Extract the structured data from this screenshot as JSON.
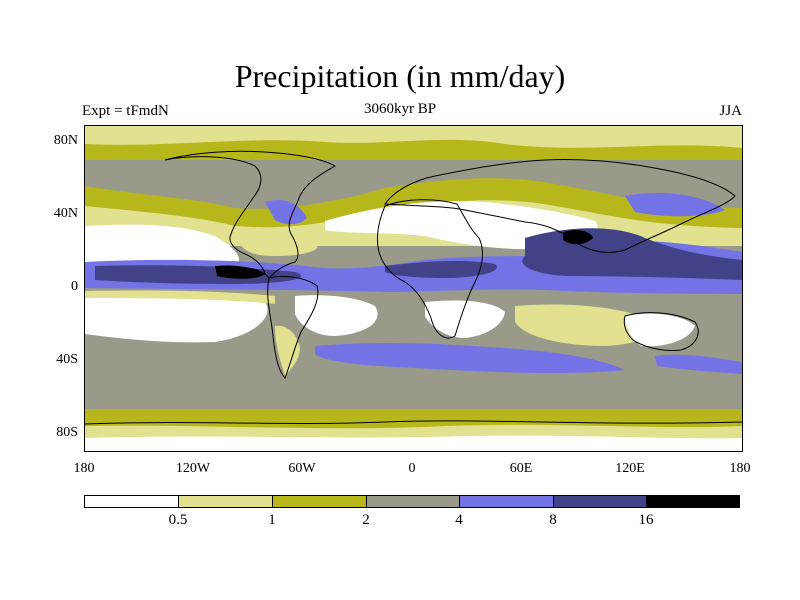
{
  "title": "Precipitation (in mm/day)",
  "experiment": "Expt = tFmdN",
  "period": "3060kyr BP",
  "season": "JJA",
  "lat_labels": [
    "80N",
    "40N",
    "0",
    "40S",
    "80S"
  ],
  "lon_labels": [
    "180",
    "120W",
    "60W",
    "0",
    "60E",
    "120E",
    "180"
  ],
  "colorbar": {
    "colors": [
      "#ffffff",
      "#e1e18f",
      "#b7b71b",
      "#9a9a8a",
      "#7373e6",
      "#424288",
      "#000000"
    ],
    "labels": [
      "0.5",
      "1",
      "2",
      "4",
      "8",
      "16"
    ]
  }
}
